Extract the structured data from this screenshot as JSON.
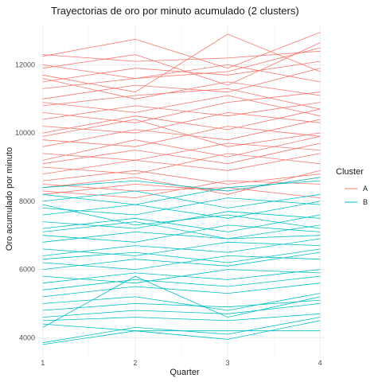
{
  "chart_data": {
    "type": "line",
    "title": "Trayectorias de oro por minuto acumulado (2 clusters)",
    "xlabel": "Quarter",
    "ylabel": "Oro acumulado por minuto",
    "x": [
      1,
      2,
      3,
      4
    ],
    "x_ticks": [
      "1",
      "2",
      "3",
      "4"
    ],
    "y_ticks": [
      "4000",
      "6000",
      "8000",
      "10000",
      "12000"
    ],
    "ylim": [
      3400,
      13200
    ],
    "xlim": [
      0.95,
      4.05
    ],
    "grid": true,
    "legend": {
      "title": "Cluster",
      "placement": "right"
    },
    "series": [
      {
        "name": "A",
        "color": "#F8766D",
        "lines": [
          [
            12300,
            12100,
            12200,
            12400
          ],
          [
            12250,
            12750,
            11900,
            12950
          ],
          [
            11900,
            12300,
            11400,
            12650
          ],
          [
            11700,
            11200,
            12900,
            11800
          ],
          [
            12000,
            11600,
            11800,
            12500
          ],
          [
            11500,
            11900,
            11700,
            12100
          ],
          [
            11300,
            11600,
            12000,
            11500
          ],
          [
            11000,
            11400,
            11200,
            11900
          ],
          [
            10800,
            11100,
            11300,
            10700
          ],
          [
            10600,
            10300,
            10900,
            11200
          ],
          [
            10400,
            10800,
            10500,
            10900
          ],
          [
            10200,
            10000,
            10600,
            10300
          ],
          [
            10000,
            10500,
            10100,
            10700
          ],
          [
            9800,
            9600,
            10200,
            9900
          ],
          [
            9600,
            10100,
            9800,
            10400
          ],
          [
            9400,
            9200,
            9700,
            9500
          ],
          [
            9200,
            9800,
            9300,
            9900
          ],
          [
            9000,
            8800,
            9400,
            9100
          ],
          [
            8800,
            9200,
            8900,
            9400
          ],
          [
            8600,
            8900,
            8500,
            8800
          ],
          [
            8400,
            8700,
            8200,
            8900
          ],
          [
            8300,
            8100,
            8600,
            8500
          ],
          [
            8200,
            8500,
            8300,
            8700
          ],
          [
            11600,
            11000,
            11500,
            11100
          ],
          [
            10900,
            10600,
            11100,
            10500
          ],
          [
            9900,
            10400,
            9600,
            10000
          ],
          [
            9100,
            9500,
            9100,
            9700
          ],
          [
            8500,
            8300,
            8400,
            8100
          ]
        ]
      },
      {
        "name": "B",
        "color": "#00BFC4",
        "lines": [
          [
            8400,
            8600,
            8300,
            8700
          ],
          [
            8200,
            7900,
            8400,
            8600
          ],
          [
            8000,
            8300,
            7800,
            8200
          ],
          [
            7800,
            7600,
            8100,
            7900
          ],
          [
            7600,
            7900,
            7500,
            8000
          ],
          [
            7400,
            7200,
            7700,
            7500
          ],
          [
            7200,
            7500,
            7100,
            7600
          ],
          [
            7000,
            6800,
            7300,
            7100
          ],
          [
            6800,
            7100,
            6900,
            7300
          ],
          [
            6600,
            6400,
            6800,
            6700
          ],
          [
            6400,
            6700,
            6500,
            6900
          ],
          [
            6200,
            6000,
            6400,
            6300
          ],
          [
            6000,
            6300,
            6100,
            6500
          ],
          [
            5800,
            5600,
            6000,
            5900
          ],
          [
            5600,
            5900,
            5700,
            6000
          ],
          [
            5400,
            5700,
            5500,
            5800
          ],
          [
            5200,
            5500,
            5300,
            5600
          ],
          [
            5000,
            5200,
            4800,
            5300
          ],
          [
            4800,
            5000,
            4900,
            5100
          ],
          [
            4600,
            4800,
            4700,
            5000
          ],
          [
            4500,
            4600,
            4500,
            4700
          ],
          [
            4400,
            4200,
            4200,
            4200
          ],
          [
            4300,
            5800,
            4600,
            5200
          ],
          [
            3850,
            4300,
            4100,
            4600
          ],
          [
            3800,
            4200,
            3950,
            4500
          ],
          [
            7900,
            7300,
            7600,
            7200
          ],
          [
            7100,
            7400,
            6900,
            7000
          ],
          [
            6300,
            6500,
            6200,
            6600
          ]
        ]
      }
    ]
  }
}
